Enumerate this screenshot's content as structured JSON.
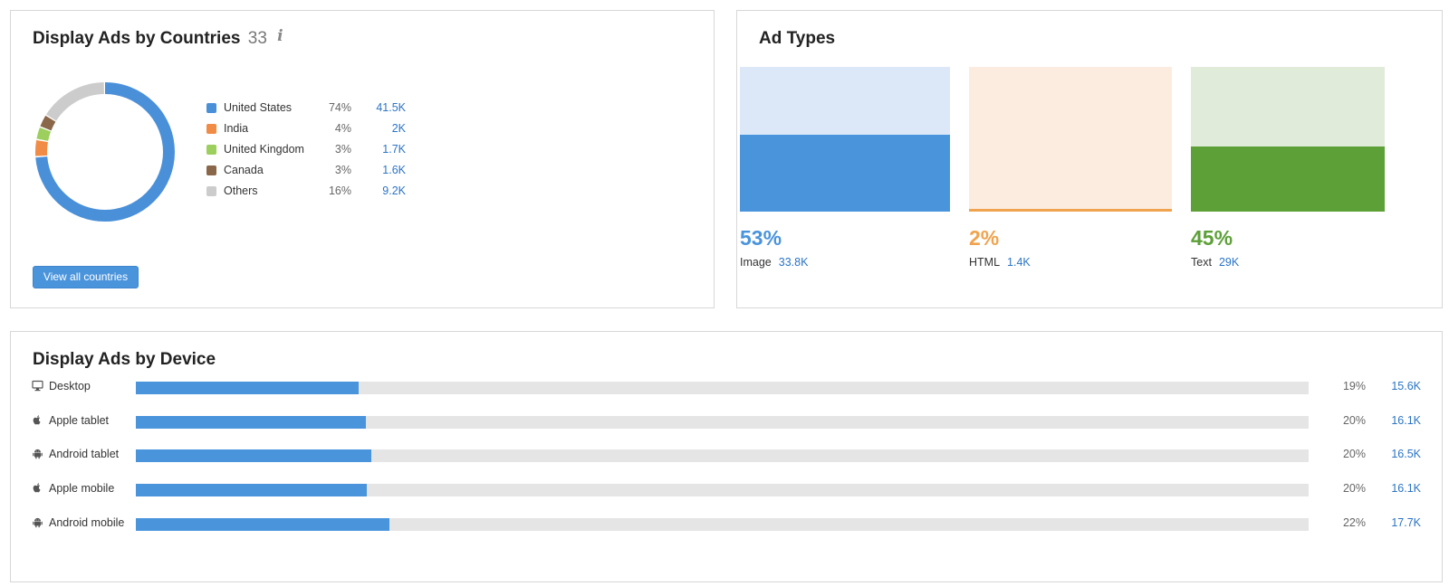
{
  "countries": {
    "title": "Display Ads by Countries",
    "count": "33",
    "info_icon": "i",
    "items": [
      {
        "label": "United States",
        "pct": "74%",
        "value": "41.5K",
        "share": 74,
        "color": "#4a90d9"
      },
      {
        "label": "India",
        "pct": "4%",
        "value": "2K",
        "share": 4,
        "color": "#f08c45"
      },
      {
        "label": "United Kingdom",
        "pct": "3%",
        "value": "1.7K",
        "share": 3,
        "color": "#9ccf5d"
      },
      {
        "label": "Canada",
        "pct": "3%",
        "value": "1.6K",
        "share": 3,
        "color": "#8a6748"
      },
      {
        "label": "Others",
        "pct": "16%",
        "value": "9.2K",
        "share": 16,
        "color": "#cccccc"
      }
    ],
    "button_label": "View all countries"
  },
  "ad_types": {
    "title": "Ad Types",
    "items": [
      {
        "pct": "53%",
        "label": "Image",
        "value": "33.8K",
        "share": 53,
        "color": "#4a94dc",
        "bg": "#dce8f7"
      },
      {
        "pct": "2%",
        "label": "HTML",
        "value": "1.4K",
        "share": 2,
        "color": "#f0a34e",
        "bg": "#fbecdf"
      },
      {
        "pct": "45%",
        "label": "Text",
        "value": "29K",
        "share": 45,
        "color": "#5da038",
        "bg": "#e0ecd9"
      }
    ]
  },
  "device": {
    "title": "Display Ads by Device",
    "items": [
      {
        "label": "Desktop",
        "icon": "desktop-icon",
        "pct": "19%",
        "value": "15.6K",
        "share": 19
      },
      {
        "label": "Apple tablet",
        "icon": "apple-icon",
        "pct": "20%",
        "value": "16.1K",
        "share": 19.6
      },
      {
        "label": "Android tablet",
        "icon": "android-icon",
        "pct": "20%",
        "value": "16.5K",
        "share": 20.1
      },
      {
        "label": "Apple mobile",
        "icon": "apple-icon",
        "pct": "20%",
        "value": "16.1K",
        "share": 19.7
      },
      {
        "label": "Android mobile",
        "icon": "android-icon",
        "pct": "22%",
        "value": "17.7K",
        "share": 21.6
      }
    ]
  }
}
